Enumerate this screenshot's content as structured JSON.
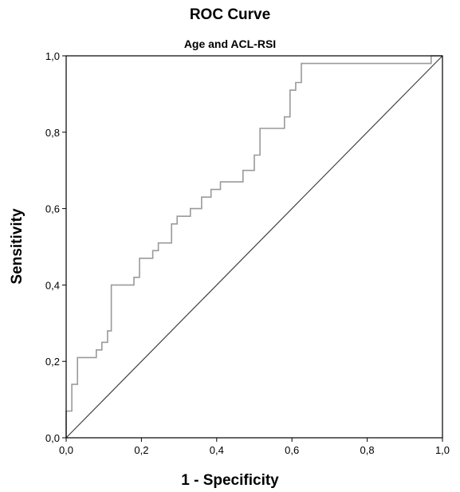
{
  "chart_data": {
    "type": "line",
    "title": "ROC Curve",
    "subtitle": "Age and ACL-RSI",
    "xlabel": "1 - Specificity",
    "ylabel": "Sensitivity",
    "xlim": [
      0,
      1
    ],
    "ylim": [
      0,
      1
    ],
    "xticks": [
      "0,0",
      "0,2",
      "0,4",
      "0,6",
      "0,8",
      "1,0"
    ],
    "yticks": [
      "0,0",
      "0,2",
      "0,4",
      "0,6",
      "0,8",
      "1,0"
    ],
    "grid": false,
    "series": [
      {
        "color": "#9a9a9a",
        "x": [
          0.0,
          0.0,
          0.015,
          0.015,
          0.03,
          0.03,
          0.08,
          0.08,
          0.095,
          0.095,
          0.11,
          0.11,
          0.12,
          0.12,
          0.135,
          0.135,
          0.18,
          0.18,
          0.195,
          0.195,
          0.23,
          0.23,
          0.245,
          0.245,
          0.255,
          0.255,
          0.28,
          0.28,
          0.295,
          0.295,
          0.31,
          0.31,
          0.33,
          0.33,
          0.36,
          0.36,
          0.385,
          0.385,
          0.41,
          0.41,
          0.425,
          0.425,
          0.47,
          0.47,
          0.485,
          0.485,
          0.5,
          0.5,
          0.515,
          0.515,
          0.58,
          0.58,
          0.595,
          0.595,
          0.61,
          0.61,
          0.625,
          0.625,
          0.97,
          0.97,
          1.0
        ],
        "y": [
          0.0,
          0.07,
          0.07,
          0.14,
          0.14,
          0.21,
          0.21,
          0.23,
          0.23,
          0.25,
          0.25,
          0.28,
          0.28,
          0.4,
          0.4,
          0.4,
          0.4,
          0.42,
          0.42,
          0.47,
          0.47,
          0.49,
          0.49,
          0.51,
          0.51,
          0.51,
          0.51,
          0.56,
          0.56,
          0.58,
          0.58,
          0.58,
          0.58,
          0.6,
          0.6,
          0.63,
          0.63,
          0.65,
          0.65,
          0.67,
          0.67,
          0.67,
          0.67,
          0.7,
          0.7,
          0.7,
          0.7,
          0.74,
          0.74,
          0.81,
          0.81,
          0.84,
          0.84,
          0.91,
          0.91,
          0.93,
          0.93,
          0.98,
          0.98,
          1.0,
          1.0
        ]
      },
      {
        "color": "#404040",
        "x": [
          0,
          1
        ],
        "y": [
          0,
          1
        ]
      }
    ]
  }
}
